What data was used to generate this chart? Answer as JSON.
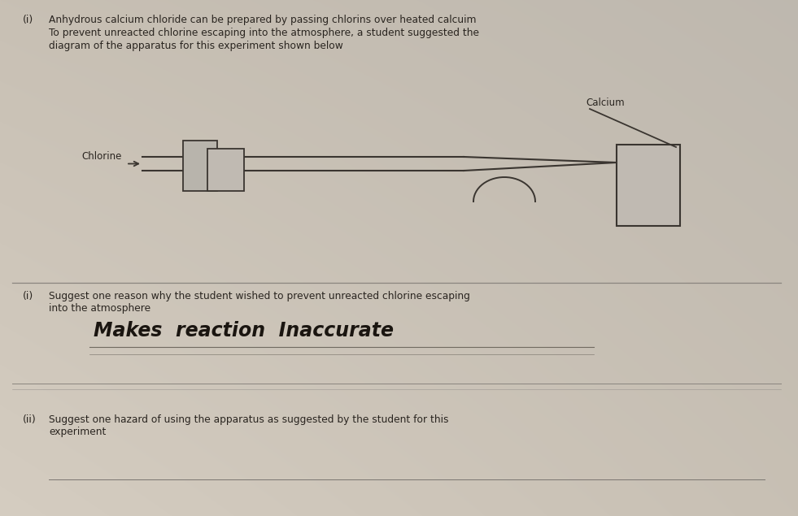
{
  "bg_color_top_right": "#b8b0a8",
  "bg_color_center": "#c8c0b4",
  "bg_color_bottom": "#beb8b0",
  "text_color": "#2a2520",
  "title_number": "(i)",
  "title_line1": "Anhydrous calcium chloride can be prepared by passing chlorins over heated calcuim",
  "title_line2": "To prevent unreacted chlorine escaping into the atmosphere, a student suggested the",
  "title_line3": "diagram of the apparatus for this experiment shown below",
  "label_chlorine": "Chlorine",
  "label_calcium": "Calcium",
  "q_i_number": "(i)",
  "q_i_text1": "Suggest one reason why the student wished to prevent unreacted chlorine escaping",
  "q_i_text2": "into the atmosphere",
  "answer_handwritten": "Makes  reaction  Inaccurate",
  "q_ii_number": "(ii)",
  "q_ii_text1": "Suggest one hazard of using the apparatus as suggested by the student for this",
  "q_ii_text2": "experiment",
  "diagram_line_color": "#3a3530",
  "tube_fill": "#c0bab2",
  "box_fill": "#b8b4ac"
}
